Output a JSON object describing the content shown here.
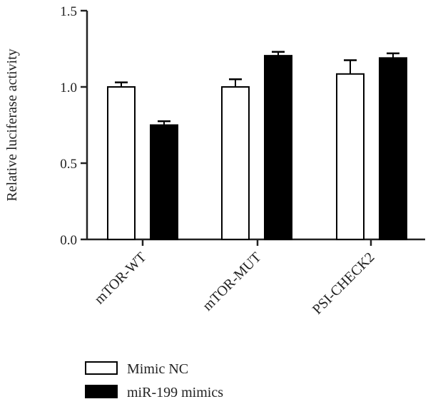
{
  "chart_data": {
    "type": "bar",
    "title": "",
    "xlabel": "",
    "ylabel": "Relative luciferase activity",
    "ylim": [
      0,
      1.5
    ],
    "yticks": [
      "0.0",
      "0.5",
      "1.0",
      "1.5"
    ],
    "categories": [
      "mTOR-WT",
      "mTOR-MUT",
      "PSI-CHECK2"
    ],
    "series": [
      {
        "name": "Mimic NC",
        "values": [
          1.0,
          1.0,
          1.085
        ],
        "errors": [
          0.03,
          0.05,
          0.09
        ],
        "color": "#ffffff"
      },
      {
        "name": "miR-199 mimics",
        "values": [
          0.75,
          1.205,
          1.19
        ],
        "errors": [
          0.025,
          0.025,
          0.03
        ],
        "color": "#000000"
      }
    ],
    "legend": "bottom-left",
    "grid": false
  }
}
